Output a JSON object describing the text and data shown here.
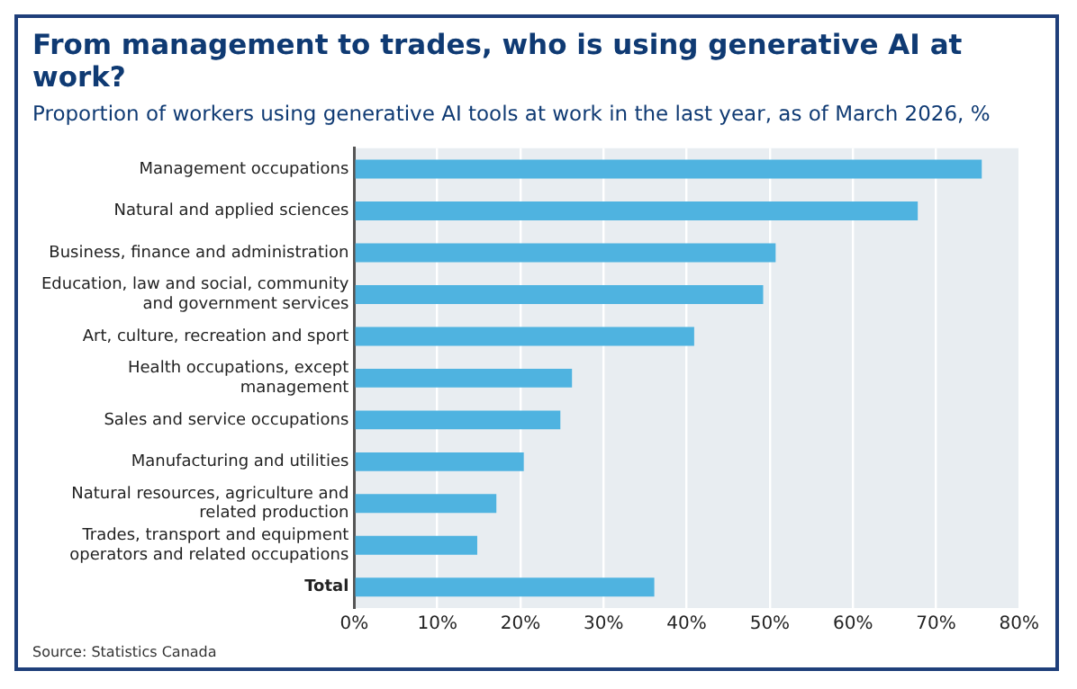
{
  "chart_data": {
    "type": "bar",
    "orientation": "horizontal",
    "title": "From management to trades, who is using generative AI at work?",
    "subtitle": "Proportion of workers using generative AI tools at work in the last year, as of March 2026, %",
    "categories": [
      "Management occupations",
      "Natural and applied sciences",
      "Business, finance and administration",
      "Education, law and social, community and government services",
      "Art, culture, recreation and sport",
      "Health occupations, except management",
      "Sales and service occupations",
      "Manufacturing and utilities",
      "Natural resources, agriculture and related production",
      "Trades, transport and equipment operators and related occupations",
      "Total"
    ],
    "values": [
      75.5,
      67.8,
      50.7,
      49.2,
      40.9,
      26.2,
      24.8,
      20.4,
      17.1,
      14.8,
      36.1
    ],
    "color": "#4fb3e0",
    "xlim": [
      0,
      80
    ],
    "xticks": [
      {
        "value": 0,
        "label": "0%"
      },
      {
        "value": 10,
        "label": "10%"
      },
      {
        "value": 20,
        "label": "20%"
      },
      {
        "value": 30,
        "label": "30%"
      },
      {
        "value": 40,
        "label": "40%"
      },
      {
        "value": 50,
        "label": "50%"
      },
      {
        "value": 60,
        "label": "60%"
      },
      {
        "value": 70,
        "label": "70%"
      },
      {
        "value": 80,
        "label": "80%"
      }
    ],
    "grid": "x",
    "legend": false,
    "annotations": [
      "Source: Statistics Canada"
    ]
  }
}
